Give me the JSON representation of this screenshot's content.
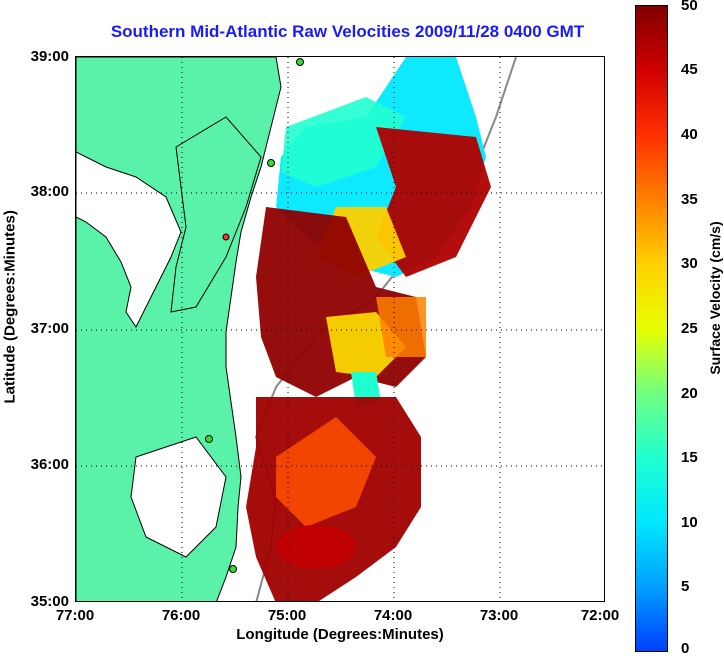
{
  "title": "Southern Mid-Atlantic Raw Velocities 2009/11/28 0400 GMT",
  "x_axis": {
    "title": "Longitude (Degrees:Minutes)",
    "ticks": [
      "77:00",
      "76:00",
      "75:00",
      "74:00",
      "73:00",
      "72:00"
    ]
  },
  "y_axis": {
    "title": "Latitude (Degrees:Minutes)",
    "ticks": [
      "39:00",
      "38:00",
      "37:00",
      "36:00",
      "35:00"
    ]
  },
  "colorbar": {
    "title": "Surface Velocity (cm/s)",
    "ticks": [
      "50",
      "45",
      "40",
      "35",
      "30",
      "25",
      "20",
      "15",
      "10",
      "5",
      "0"
    ],
    "min": 0,
    "max": 50
  },
  "colors": {
    "land": "#5af2a8",
    "title": "#1a1aff",
    "low_velocity": "#00e8ff",
    "high_velocity": "#a00000"
  }
}
